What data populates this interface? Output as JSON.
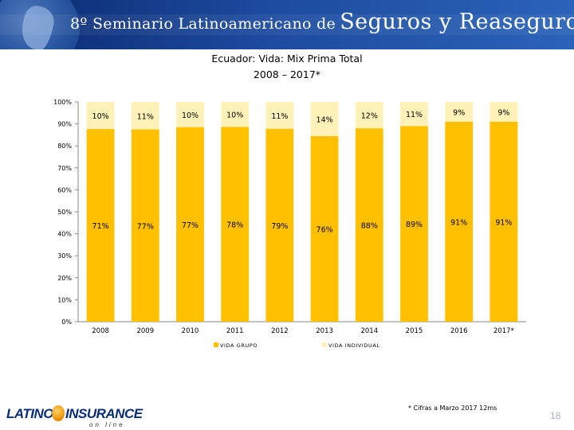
{
  "banner": {
    "part1": "8º Seminario Latinoamericano de",
    "part2": "Seguros y Reaseguros"
  },
  "chart_data": {
    "type": "bar",
    "stacked": true,
    "percent": true,
    "title": "Ecuador: Vida: Mix Prima Total",
    "subtitle": "2008 – 2017*",
    "categories": [
      "2008",
      "2009",
      "2010",
      "2011",
      "2012",
      "2013",
      "2014",
      "2015",
      "2016",
      "2017*"
    ],
    "series": [
      {
        "name": "VIDA GRUPO",
        "values": [
          71,
          77,
          77,
          78,
          79,
          76,
          88,
          89,
          91,
          91
        ],
        "labels": [
          "71%",
          "77%",
          "77%",
          "78%",
          "79%",
          "76%",
          "88%",
          "89%",
          "91%",
          "91%"
        ],
        "color": "#FFC000"
      },
      {
        "name": "VIDA INDIVIDUAL",
        "values": [
          10,
          11,
          10,
          10,
          11,
          14,
          12,
          11,
          9,
          9
        ],
        "labels": [
          "10%",
          "11%",
          "10%",
          "10%",
          "11%",
          "14%",
          "12%",
          "11%",
          "9%",
          "9%"
        ],
        "color": "#FFF2B8"
      }
    ],
    "yticks": [
      "0%",
      "10%",
      "20%",
      "30%",
      "40%",
      "50%",
      "60%",
      "70%",
      "80%",
      "90%",
      "100%"
    ],
    "ylim": [
      0,
      100
    ],
    "legend_position": "bottom"
  },
  "footnote": "* Cifras a Marzo 2017 12ms",
  "page_number": "18",
  "logo": {
    "word1": "LATINO",
    "word2": "INSURANCE",
    "tagline": "on line"
  }
}
